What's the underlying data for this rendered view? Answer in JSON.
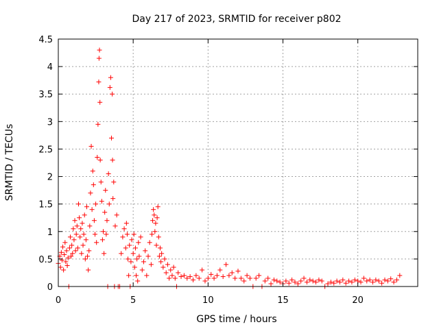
{
  "chart_data": {
    "type": "scatter",
    "title": "Day 217 of 2023, SRMTID for receiver p802",
    "xlabel": "GPS time / hours",
    "ylabel": "SRMTID / TECUs",
    "xlim": [
      0,
      24
    ],
    "ylim": [
      0,
      4.5
    ],
    "xticks": [
      "0",
      "5",
      "10",
      "15",
      "20"
    ],
    "yticks": [
      "0",
      "0.5",
      "1",
      "1.5",
      "2",
      "2.5",
      "3",
      "3.5",
      "4",
      "4.5"
    ],
    "grid": true,
    "marker": "+",
    "color": "#ff0000",
    "series": [
      {
        "name": "SRMTID",
        "points": [
          [
            0.0,
            0.42
          ],
          [
            0.1,
            0.55
          ],
          [
            0.15,
            0.35
          ],
          [
            0.2,
            0.62
          ],
          [
            0.25,
            0.48
          ],
          [
            0.3,
            0.72
          ],
          [
            0.35,
            0.3
          ],
          [
            0.4,
            0.58
          ],
          [
            0.45,
            0.8
          ],
          [
            0.5,
            0.45
          ],
          [
            0.55,
            0.65
          ],
          [
            0.6,
            0.38
          ],
          [
            0.65,
            0.52
          ],
          [
            0.7,
            0.0
          ],
          [
            0.75,
            0.7
          ],
          [
            0.8,
            0.9
          ],
          [
            0.85,
            0.55
          ],
          [
            0.9,
            0.75
          ],
          [
            0.95,
            0.6
          ],
          [
            1.0,
            1.05
          ],
          [
            1.05,
            0.85
          ],
          [
            1.1,
            1.2
          ],
          [
            1.15,
            0.65
          ],
          [
            1.2,
            0.95
          ],
          [
            1.25,
            1.1
          ],
          [
            1.3,
            0.7
          ],
          [
            1.35,
            1.5
          ],
          [
            1.4,
            1.25
          ],
          [
            1.45,
            0.9
          ],
          [
            1.5,
            1.05
          ],
          [
            1.55,
            0.6
          ],
          [
            1.6,
            1.15
          ],
          [
            1.65,
            0.75
          ],
          [
            1.7,
            0.95
          ],
          [
            1.75,
            1.3
          ],
          [
            1.8,
            0.5
          ],
          [
            1.85,
            0.85
          ],
          [
            1.9,
            1.45
          ],
          [
            1.95,
            0.55
          ],
          [
            2.0,
            0.3
          ],
          [
            2.05,
            0.65
          ],
          [
            2.1,
            1.1
          ],
          [
            2.15,
            1.7
          ],
          [
            2.2,
            2.55
          ],
          [
            2.25,
            1.4
          ],
          [
            2.3,
            2.1
          ],
          [
            2.35,
            1.85
          ],
          [
            2.4,
            1.2
          ],
          [
            2.45,
            0.95
          ],
          [
            2.5,
            1.5
          ],
          [
            2.55,
            0.8
          ],
          [
            2.6,
            2.35
          ],
          [
            2.65,
            2.95
          ],
          [
            2.7,
            3.72
          ],
          [
            2.72,
            4.15
          ],
          [
            2.75,
            4.3
          ],
          [
            2.78,
            3.35
          ],
          [
            2.8,
            2.3
          ],
          [
            2.85,
            1.9
          ],
          [
            2.9,
            1.55
          ],
          [
            2.95,
            0.85
          ],
          [
            3.0,
            1.0
          ],
          [
            3.05,
            0.6
          ],
          [
            3.1,
            1.35
          ],
          [
            3.15,
            1.75
          ],
          [
            3.2,
            0.95
          ],
          [
            3.25,
            1.2
          ],
          [
            3.3,
            0.0
          ],
          [
            3.35,
            2.05
          ],
          [
            3.4,
            1.5
          ],
          [
            3.45,
            3.62
          ],
          [
            3.5,
            3.8
          ],
          [
            3.55,
            2.7
          ],
          [
            3.6,
            3.5
          ],
          [
            3.62,
            2.3
          ],
          [
            3.65,
            1.6
          ],
          [
            3.7,
            1.9
          ],
          [
            3.75,
            0.0
          ],
          [
            3.8,
            1.1
          ],
          [
            3.9,
            1.3
          ],
          [
            4.0,
            0.0
          ],
          [
            4.1,
            0.0
          ],
          [
            4.2,
            0.6
          ],
          [
            4.3,
            0.9
          ],
          [
            4.4,
            1.05
          ],
          [
            4.5,
            0.7
          ],
          [
            4.55,
            1.15
          ],
          [
            4.6,
            0.95
          ],
          [
            4.65,
            0.5
          ],
          [
            4.7,
            0.2
          ],
          [
            4.75,
            0.75
          ],
          [
            4.8,
            0.0
          ],
          [
            4.85,
            0.45
          ],
          [
            4.9,
            0.85
          ],
          [
            5.0,
            0.6
          ],
          [
            5.05,
            0.95
          ],
          [
            5.1,
            0.35
          ],
          [
            5.15,
            0.7
          ],
          [
            5.2,
            0.2
          ],
          [
            5.25,
            0.5
          ],
          [
            5.3,
            0.1
          ],
          [
            5.35,
            0.8
          ],
          [
            5.4,
            0.55
          ],
          [
            5.5,
            0.9
          ],
          [
            5.6,
            0.3
          ],
          [
            5.7,
            0.45
          ],
          [
            5.8,
            0.65
          ],
          [
            5.9,
            0.2
          ],
          [
            6.0,
            0.55
          ],
          [
            6.1,
            0.8
          ],
          [
            6.2,
            0.4
          ],
          [
            6.25,
            0.95
          ],
          [
            6.3,
            1.2
          ],
          [
            6.35,
            1.4
          ],
          [
            6.4,
            1.3
          ],
          [
            6.45,
            1.0
          ],
          [
            6.5,
            1.15
          ],
          [
            6.55,
            0.75
          ],
          [
            6.6,
            1.25
          ],
          [
            6.65,
            1.45
          ],
          [
            6.7,
            0.9
          ],
          [
            6.75,
            0.55
          ],
          [
            6.8,
            0.7
          ],
          [
            6.85,
            0.45
          ],
          [
            6.9,
            0.6
          ],
          [
            7.0,
            0.35
          ],
          [
            7.1,
            0.5
          ],
          [
            7.2,
            0.25
          ],
          [
            7.3,
            0.4
          ],
          [
            7.4,
            0.15
          ],
          [
            7.5,
            0.3
          ],
          [
            7.6,
            0.2
          ],
          [
            7.7,
            0.35
          ],
          [
            7.8,
            0.15
          ],
          [
            7.9,
            0.0
          ],
          [
            8.0,
            0.25
          ],
          [
            8.2,
            0.18
          ],
          [
            8.4,
            0.2
          ],
          [
            8.6,
            0.15
          ],
          [
            8.8,
            0.18
          ],
          [
            9.0,
            0.12
          ],
          [
            9.2,
            0.2
          ],
          [
            9.4,
            0.15
          ],
          [
            9.6,
            0.3
          ],
          [
            9.8,
            0.1
          ],
          [
            10.0,
            0.15
          ],
          [
            10.2,
            0.22
          ],
          [
            10.4,
            0.15
          ],
          [
            10.6,
            0.2
          ],
          [
            10.8,
            0.3
          ],
          [
            11.0,
            0.18
          ],
          [
            11.2,
            0.4
          ],
          [
            11.4,
            0.2
          ],
          [
            11.6,
            0.25
          ],
          [
            11.8,
            0.15
          ],
          [
            12.0,
            0.28
          ],
          [
            12.2,
            0.15
          ],
          [
            12.4,
            0.1
          ],
          [
            12.6,
            0.2
          ],
          [
            12.8,
            0.15
          ],
          [
            13.0,
            0.0
          ],
          [
            13.2,
            0.15
          ],
          [
            13.4,
            0.2
          ],
          [
            13.6,
            0.0
          ],
          [
            13.8,
            0.1
          ],
          [
            14.0,
            0.15
          ],
          [
            14.2,
            0.05
          ],
          [
            14.4,
            0.12
          ],
          [
            14.6,
            0.1
          ],
          [
            14.8,
            0.08
          ],
          [
            15.0,
            0.05
          ],
          [
            15.2,
            0.1
          ],
          [
            15.4,
            0.06
          ],
          [
            15.6,
            0.12
          ],
          [
            15.8,
            0.08
          ],
          [
            16.0,
            0.05
          ],
          [
            16.2,
            0.1
          ],
          [
            16.4,
            0.15
          ],
          [
            16.6,
            0.08
          ],
          [
            16.8,
            0.12
          ],
          [
            17.0,
            0.1
          ],
          [
            17.2,
            0.08
          ],
          [
            17.4,
            0.12
          ],
          [
            17.6,
            0.1
          ],
          [
            17.8,
            0.0
          ],
          [
            18.0,
            0.05
          ],
          [
            18.2,
            0.08
          ],
          [
            18.4,
            0.06
          ],
          [
            18.6,
            0.1
          ],
          [
            18.8,
            0.08
          ],
          [
            19.0,
            0.12
          ],
          [
            19.2,
            0.06
          ],
          [
            19.4,
            0.1
          ],
          [
            19.6,
            0.08
          ],
          [
            19.8,
            0.12
          ],
          [
            20.0,
            0.1
          ],
          [
            20.2,
            0.08
          ],
          [
            20.4,
            0.15
          ],
          [
            20.6,
            0.1
          ],
          [
            20.8,
            0.12
          ],
          [
            21.0,
            0.08
          ],
          [
            21.2,
            0.12
          ],
          [
            21.4,
            0.1
          ],
          [
            21.6,
            0.06
          ],
          [
            21.8,
            0.12
          ],
          [
            22.0,
            0.1
          ],
          [
            22.2,
            0.14
          ],
          [
            22.4,
            0.08
          ],
          [
            22.6,
            0.12
          ],
          [
            22.8,
            0.2
          ]
        ]
      }
    ]
  }
}
